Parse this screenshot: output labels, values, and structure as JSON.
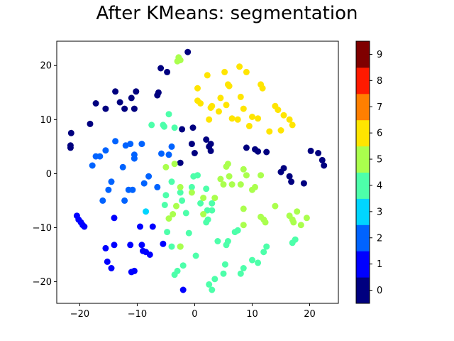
{
  "chart_data": {
    "type": "scatter",
    "title": "After KMeans: segmentation",
    "xlabel": "",
    "ylabel": "",
    "xlim": [
      -24,
      25
    ],
    "ylim": [
      -24,
      24.5
    ],
    "xticks": [
      -20,
      -10,
      0,
      10,
      20
    ],
    "yticks": [
      -20,
      -10,
      0,
      10,
      20
    ],
    "grid": false,
    "colormap": "jet (10 discrete levels)",
    "colorbar": {
      "ticks": [
        0,
        1,
        2,
        3,
        4,
        5,
        6,
        7,
        8,
        9
      ],
      "colors": [
        "#00007f",
        "#0000ff",
        "#0063ff",
        "#00d5ff",
        "#4dffaa",
        "#aaff4d",
        "#ffe500",
        "#ff7f00",
        "#ff1a00",
        "#7f0000"
      ]
    },
    "points": [
      [
        -21.5,
        7.5,
        0
      ],
      [
        -21.6,
        5.2,
        0
      ],
      [
        -21.6,
        4.8,
        0
      ],
      [
        -18.2,
        9.2,
        0
      ],
      [
        -17.2,
        13.0,
        0
      ],
      [
        -15.5,
        12.0,
        0
      ],
      [
        -13.8,
        15.2,
        0
      ],
      [
        -13.0,
        13.2,
        0
      ],
      [
        -12.2,
        12.0,
        0
      ],
      [
        -11.0,
        14.0,
        0
      ],
      [
        -10.2,
        15.2,
        0
      ],
      [
        -10.5,
        12.0,
        0
      ],
      [
        -6.5,
        14.5,
        0
      ],
      [
        -6.3,
        15.0,
        0
      ],
      [
        -5.9,
        19.5,
        0
      ],
      [
        -4.8,
        18.8,
        0
      ],
      [
        -1.2,
        22.5,
        0
      ],
      [
        -2.2,
        8.2,
        0
      ],
      [
        -0.3,
        8.5,
        0
      ],
      [
        -2.5,
        2.0,
        0
      ],
      [
        -0.5,
        5.5,
        0
      ],
      [
        0.0,
        3.8,
        0
      ],
      [
        2.0,
        6.3,
        0
      ],
      [
        2.5,
        5.0,
        0
      ],
      [
        2.8,
        5.5,
        0
      ],
      [
        2.8,
        4.2,
        0
      ],
      [
        9.0,
        4.8,
        0
      ],
      [
        10.5,
        4.5,
        0
      ],
      [
        11.0,
        4.1,
        0
      ],
      [
        12.5,
        4.0,
        0
      ],
      [
        15.0,
        0.3,
        0
      ],
      [
        15.5,
        1.0,
        0
      ],
      [
        16.5,
        -0.5,
        0
      ],
      [
        16.8,
        -1.5,
        0
      ],
      [
        19.0,
        -1.8,
        0
      ],
      [
        20.2,
        4.2,
        0
      ],
      [
        21.5,
        3.8,
        0
      ],
      [
        22.2,
        2.5,
        0
      ],
      [
        22.5,
        1.5,
        0
      ],
      [
        -20.5,
        -7.8,
        1
      ],
      [
        -20.2,
        -8.5,
        1
      ],
      [
        -19.8,
        -9.0,
        1
      ],
      [
        -19.5,
        -9.5,
        1
      ],
      [
        -19.2,
        -9.8,
        1
      ],
      [
        -15.5,
        -13.8,
        1
      ],
      [
        -15.2,
        -16.3,
        1
      ],
      [
        -14.5,
        -17.5,
        1
      ],
      [
        -14.0,
        -13.2,
        1
      ],
      [
        -14.0,
        -8.2,
        1
      ],
      [
        -11.2,
        -13.2,
        1
      ],
      [
        -11.0,
        -18.2,
        1
      ],
      [
        -10.5,
        -18.0,
        1
      ],
      [
        -9.5,
        -9.8,
        1
      ],
      [
        -9.2,
        -13.2,
        1
      ],
      [
        -9.0,
        -14.3,
        1
      ],
      [
        -8.5,
        -14.5,
        1
      ],
      [
        -7.8,
        -15.0,
        1
      ],
      [
        -7.3,
        -9.8,
        1
      ],
      [
        -5.5,
        -13.0,
        1
      ],
      [
        -2.0,
        -21.5,
        1
      ],
      [
        -17.8,
        1.5,
        2
      ],
      [
        -17.2,
        3.2,
        2
      ],
      [
        -16.5,
        3.2,
        2
      ],
      [
        -16.0,
        -5.0,
        2
      ],
      [
        -15.5,
        4.3,
        2
      ],
      [
        -15.0,
        -3.0,
        2
      ],
      [
        -14.5,
        -1.5,
        2
      ],
      [
        -13.8,
        6.0,
        2
      ],
      [
        -12.5,
        1.2,
        2
      ],
      [
        -12.0,
        5.2,
        2
      ],
      [
        -12.2,
        -5.0,
        2
      ],
      [
        -11.5,
        -3.0,
        2
      ],
      [
        -11.2,
        5.5,
        2
      ],
      [
        -10.8,
        -3.0,
        2
      ],
      [
        -10.5,
        3.5,
        2
      ],
      [
        -10.5,
        2.8,
        2
      ],
      [
        -9.2,
        5.5,
        2
      ],
      [
        -8.8,
        -1.8,
        2
      ],
      [
        -8.0,
        -0.5,
        2
      ],
      [
        -6.5,
        -2.5,
        2
      ],
      [
        -5.8,
        3.7,
        2
      ],
      [
        -4.5,
        3.5,
        2
      ],
      [
        -4.0,
        5.0,
        2
      ],
      [
        -8.5,
        -7.0,
        3
      ],
      [
        -7.5,
        9.0,
        4
      ],
      [
        -5.5,
        9.0,
        4
      ],
      [
        -5.3,
        8.7,
        4
      ],
      [
        -4.5,
        11.0,
        4
      ],
      [
        -3.5,
        8.5,
        4
      ],
      [
        -4.0,
        -1.5,
        4
      ],
      [
        -5.0,
        -4.0,
        4
      ],
      [
        -5.2,
        -5.8,
        4
      ],
      [
        -4.8,
        -10.8,
        4
      ],
      [
        -4.0,
        -13.5,
        4
      ],
      [
        -3.5,
        -18.7,
        4
      ],
      [
        -3.0,
        -18.0,
        4
      ],
      [
        -2.5,
        -3.5,
        4
      ],
      [
        -2.2,
        -5.0,
        4
      ],
      [
        -2.5,
        -13.5,
        4
      ],
      [
        -2.0,
        -17.0,
        4
      ],
      [
        -1.5,
        -7.3,
        4
      ],
      [
        -1.0,
        -11.0,
        4
      ],
      [
        -0.5,
        -2.5,
        4
      ],
      [
        -0.2,
        -0.5,
        4
      ],
      [
        0.2,
        -15.2,
        4
      ],
      [
        0.5,
        -0.3,
        4
      ],
      [
        1.0,
        -5.5,
        4
      ],
      [
        2.0,
        -2.8,
        4
      ],
      [
        2.0,
        -9.0,
        4
      ],
      [
        2.3,
        -8.5,
        4
      ],
      [
        2.2,
        -6.8,
        4
      ],
      [
        3.0,
        -5.5,
        4
      ],
      [
        3.0,
        -6.8,
        4
      ],
      [
        2.5,
        -20.5,
        4
      ],
      [
        3.0,
        -21.5,
        4
      ],
      [
        3.5,
        -19.5,
        4
      ],
      [
        4.0,
        -12.5,
        4
      ],
      [
        5.0,
        -18.5,
        4
      ],
      [
        5.3,
        -16.8,
        4
      ],
      [
        5.5,
        -13.2,
        4
      ],
      [
        5.8,
        -12.5,
        4
      ],
      [
        7.0,
        -10.8,
        4
      ],
      [
        7.5,
        -10.5,
        4
      ],
      [
        8.0,
        -18.5,
        4
      ],
      [
        8.5,
        -17.5,
        4
      ],
      [
        10.0,
        -16.0,
        4
      ],
      [
        11.0,
        -16.5,
        4
      ],
      [
        12.0,
        -14.5,
        4
      ],
      [
        12.5,
        -13.5,
        4
      ],
      [
        17.0,
        -12.8,
        4
      ],
      [
        17.5,
        -12.2,
        4
      ],
      [
        -3.0,
        20.8,
        5
      ],
      [
        -2.8,
        21.5,
        5
      ],
      [
        -2.5,
        21.0,
        5
      ],
      [
        -5.0,
        1.2,
        5
      ],
      [
        -3.5,
        1.8,
        5
      ],
      [
        -2.5,
        -2.5,
        5
      ],
      [
        -3.2,
        -6.0,
        5
      ],
      [
        -4.5,
        -8.3,
        5
      ],
      [
        -3.8,
        -7.5,
        5
      ],
      [
        -2.5,
        -13.5,
        5
      ],
      [
        -0.5,
        -3.5,
        5
      ],
      [
        1.5,
        -4.5,
        5
      ],
      [
        1.5,
        -7.5,
        5
      ],
      [
        3.5,
        -4.5,
        5
      ],
      [
        4.5,
        -1.0,
        5
      ],
      [
        5.0,
        -2.0,
        5
      ],
      [
        5.5,
        1.3,
        5
      ],
      [
        5.8,
        1.8,
        5
      ],
      [
        6.0,
        -0.5,
        5
      ],
      [
        6.5,
        -2.0,
        5
      ],
      [
        8.0,
        -2.0,
        5
      ],
      [
        8.5,
        -6.5,
        5
      ],
      [
        8.5,
        0.8,
        5
      ],
      [
        9.0,
        -0.3,
        5
      ],
      [
        8.5,
        -9.5,
        5
      ],
      [
        10.0,
        -3.0,
        5
      ],
      [
        10.5,
        -2.5,
        5
      ],
      [
        11.5,
        -0.3,
        5
      ],
      [
        11.5,
        -8.0,
        5
      ],
      [
        12.0,
        -8.5,
        5
      ],
      [
        12.3,
        -9.0,
        5
      ],
      [
        14.0,
        -6.0,
        5
      ],
      [
        16.5,
        -7.8,
        5
      ],
      [
        17.0,
        -8.5,
        5
      ],
      [
        17.2,
        -9.0,
        5
      ],
      [
        17.8,
        -7.0,
        5
      ],
      [
        18.5,
        -9.5,
        5
      ],
      [
        19.5,
        -8.2,
        5
      ],
      [
        0.5,
        15.8,
        6
      ],
      [
        0.5,
        13.5,
        6
      ],
      [
        1.0,
        13.0,
        6
      ],
      [
        2.2,
        18.2,
        6
      ],
      [
        2.5,
        10.0,
        6
      ],
      [
        2.8,
        12.2,
        6
      ],
      [
        3.0,
        12.5,
        6
      ],
      [
        4.2,
        11.5,
        6
      ],
      [
        4.5,
        14.0,
        6
      ],
      [
        5.2,
        18.8,
        6
      ],
      [
        5.5,
        12.7,
        6
      ],
      [
        5.8,
        16.5,
        6
      ],
      [
        6.0,
        16.2,
        6
      ],
      [
        6.5,
        10.2,
        6
      ],
      [
        7.5,
        10.0,
        6
      ],
      [
        7.8,
        19.8,
        6
      ],
      [
        8.0,
        14.2,
        6
      ],
      [
        8.5,
        12.0,
        6
      ],
      [
        9.0,
        18.8,
        6
      ],
      [
        9.5,
        8.8,
        6
      ],
      [
        10.0,
        10.5,
        6
      ],
      [
        11.0,
        10.2,
        6
      ],
      [
        11.5,
        16.5,
        6
      ],
      [
        11.8,
        15.8,
        6
      ],
      [
        13.0,
        7.8,
        6
      ],
      [
        14.0,
        12.5,
        6
      ],
      [
        14.5,
        11.8,
        6
      ],
      [
        15.0,
        8.0,
        6
      ],
      [
        15.5,
        10.8,
        6
      ],
      [
        16.5,
        10.0,
        6
      ],
      [
        17.0,
        9.0,
        6
      ]
    ]
  }
}
